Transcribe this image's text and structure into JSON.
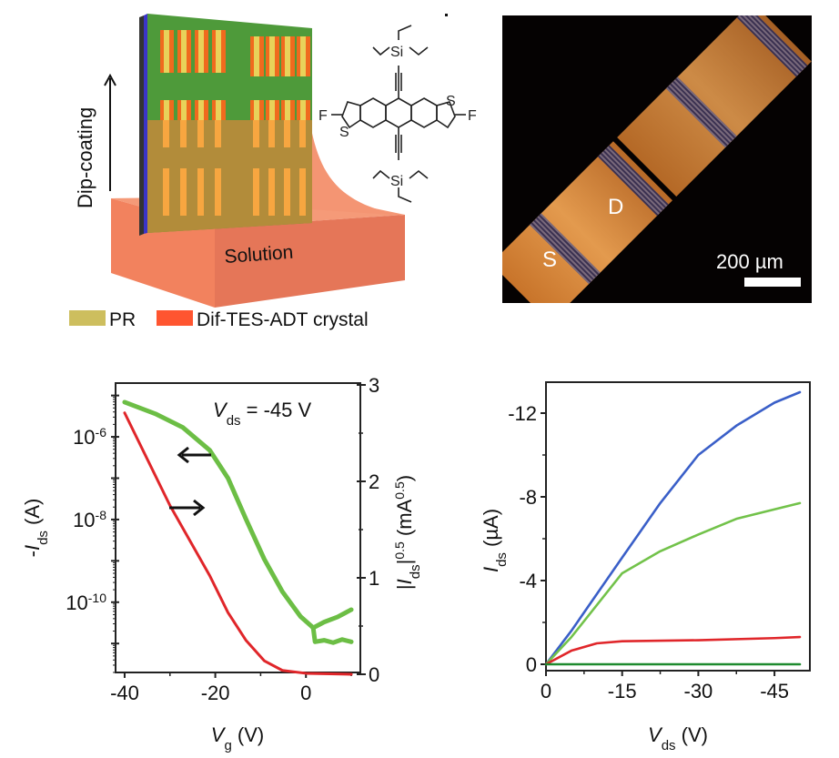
{
  "schematic": {
    "dip_label": "Dip-coating",
    "solution_label": "Solution",
    "legend": [
      {
        "label": "PR",
        "color": "#CDBE5E"
      },
      {
        "label": "Dif-TES-ADT crystal",
        "color": "#FF5530"
      }
    ],
    "molecule": {
      "atoms": {
        "si_top": "Si",
        "si_bottom": "Si",
        "f_left": "F",
        "f_right": "F",
        "s_left": "S",
        "s_right": "S"
      }
    }
  },
  "micrograph": {
    "source_label": "S",
    "drain_label": "D",
    "scale_bar_label": "200 µm"
  },
  "chart_data": [
    {
      "type": "line",
      "title": "",
      "annotation": {
        "main": "V",
        "sub": "ds",
        "value": " = -45 V"
      },
      "xlabel": {
        "main": "V",
        "sub": "g",
        "unit": " (V)"
      },
      "ylabel_left": {
        "prefix": "-",
        "main": "I",
        "sub": "ds",
        "unit": " (A)"
      },
      "ylabel_right": {
        "main": "|I",
        "sub": "ds",
        "sup": "0.5",
        "unit": "(mA",
        "unit_sup": "0.5",
        "close": ")"
      },
      "xlim": [
        -42,
        12
      ],
      "xticks": [
        -40,
        -20,
        0
      ],
      "xtick_labels": [
        "-40",
        "-20",
        "0"
      ],
      "ylim_left_log10": [
        -11.7,
        -4.7
      ],
      "yticks_left": [
        {
          "exp": -6,
          "label": "10",
          "sup": "-6"
        },
        {
          "exp": -8,
          "label": "10",
          "sup": "-8"
        },
        {
          "exp": -10,
          "label": "10",
          "sup": "-10"
        }
      ],
      "ylim_right": [
        0,
        3
      ],
      "yticks_right": [
        "0",
        "1",
        "2",
        "3"
      ],
      "arrows": [
        {
          "direction": "left",
          "target": "log axis"
        },
        {
          "direction": "right",
          "target": "sqrt axis"
        }
      ],
      "series": [
        {
          "name": "-Ids (log)",
          "axis": "left",
          "color": "#6CBE45",
          "x": [
            -40,
            -33.2,
            -27.2,
            -21.2,
            -17.2,
            -13.2,
            -9.2,
            -5.2,
            -1.2,
            1.6
          ],
          "y": [
            6.9e-06,
            3.6e-06,
            1.7e-06,
            4.7e-07,
            1e-07,
            1e-08,
            1.1e-09,
            1.8e-10,
            4.5e-11,
            2.4e-11
          ]
        },
        {
          "name": "-Ids (log, upper branch)",
          "axis": "left",
          "color": "#6CBE45",
          "x": [
            1.6,
            4,
            7,
            10
          ],
          "y": [
            2.4e-11,
            3.3e-11,
            4.4e-11,
            6.6e-11
          ]
        },
        {
          "name": "-Ids (log, lower branch)",
          "axis": "left",
          "color": "#6CBE45",
          "x": [
            1.6,
            2,
            4,
            6,
            8,
            10
          ],
          "y": [
            2.4e-11,
            1.1e-11,
            1.2e-11,
            1.05e-11,
            1.25e-11,
            1.1e-11
          ]
        },
        {
          "name": "|Ids|^0.5",
          "axis": "right",
          "color": "#E0262A",
          "x": [
            -40,
            -30,
            -21.2,
            -17.2,
            -13.2,
            -9.2,
            -5.2,
            0,
            10
          ],
          "y": [
            2.71,
            1.75,
            1.02,
            0.64,
            0.35,
            0.14,
            0.04,
            0.01,
            0.0
          ]
        }
      ]
    },
    {
      "type": "line",
      "title": "",
      "xlabel": {
        "main": "V",
        "sub": "ds",
        "unit": " (V)"
      },
      "ylabel": {
        "main": "I",
        "sub": "ds",
        "unit": " (µA)"
      },
      "xlim": [
        0,
        -52
      ],
      "xticks": [
        0,
        -15,
        -30,
        -45
      ],
      "xtick_labels": [
        "0",
        "-15",
        "-30",
        "-45"
      ],
      "ylim": [
        0.3,
        -13.7
      ],
      "yticks": [
        0,
        -4,
        -8,
        -12
      ],
      "ytick_labels": [
        "0",
        "-4",
        "-8",
        "-12"
      ],
      "series": [
        {
          "name": "blue",
          "color": "#3A5FC8",
          "x": [
            0,
            -5,
            -15,
            -22.5,
            -30,
            -37.5,
            -45,
            -50
          ],
          "y": [
            0,
            -1.6,
            -5.1,
            -7.7,
            -10.0,
            -11.4,
            -12.5,
            -13.0
          ]
        },
        {
          "name": "light green",
          "color": "#72C24A",
          "x": [
            0,
            -5,
            -15,
            -22.5,
            -30,
            -37.5,
            -45,
            -50
          ],
          "y": [
            0,
            -1.3,
            -4.35,
            -5.4,
            -6.2,
            -6.95,
            -7.4,
            -7.7
          ]
        },
        {
          "name": "red",
          "color": "#E0262A",
          "x": [
            0,
            -5,
            -10,
            -15,
            -30,
            -45,
            -50
          ],
          "y": [
            0,
            -0.65,
            -1.0,
            -1.1,
            -1.15,
            -1.25,
            -1.3
          ]
        },
        {
          "name": "dark green",
          "color": "#1E8A2E",
          "x": [
            0,
            -50
          ],
          "y": [
            0,
            0
          ]
        }
      ]
    }
  ]
}
